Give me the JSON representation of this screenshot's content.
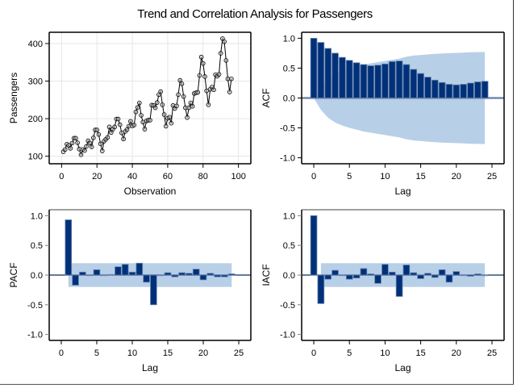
{
  "page": {
    "title": "Trend and Correlation Analysis for Passengers"
  },
  "colors": {
    "bar": "#003178",
    "bar_edge": "#6c86b3",
    "band": "#b8cfe8",
    "grid": "#e6e6e6",
    "zero_line_acf": "#7289ad",
    "zero_line": "#0c2a5e",
    "axis": "#000000",
    "axis_gray": "#808080"
  },
  "chart_data": [
    {
      "id": "trend",
      "type": "line",
      "title": "",
      "xlabel": "Observation",
      "ylabel": "Passengers",
      "xlim": [
        -7,
        107
      ],
      "ylim": [
        80,
        430
      ],
      "xticks": [
        0,
        20,
        40,
        60,
        80,
        100
      ],
      "yticks": [
        100,
        200,
        300,
        400
      ],
      "grid": true,
      "markers": "open-circle",
      "x": [
        1,
        2,
        3,
        4,
        5,
        6,
        7,
        8,
        9,
        10,
        11,
        12,
        13,
        14,
        15,
        16,
        17,
        18,
        19,
        20,
        21,
        22,
        23,
        24,
        25,
        26,
        27,
        28,
        29,
        30,
        31,
        32,
        33,
        34,
        35,
        36,
        37,
        38,
        39,
        40,
        41,
        42,
        43,
        44,
        45,
        46,
        47,
        48,
        49,
        50,
        51,
        52,
        53,
        54,
        55,
        56,
        57,
        58,
        59,
        60,
        61,
        62,
        63,
        64,
        65,
        66,
        67,
        68,
        69,
        70,
        71,
        72,
        73,
        74,
        75,
        76,
        77,
        78,
        79,
        80,
        81,
        82,
        83,
        84,
        85,
        86,
        87,
        88,
        89,
        90,
        91,
        92,
        93,
        94,
        95,
        96
      ],
      "y": [
        112,
        118,
        132,
        129,
        121,
        135,
        148,
        148,
        136,
        119,
        104,
        118,
        115,
        126,
        141,
        135,
        125,
        149,
        170,
        170,
        158,
        133,
        114,
        140,
        145,
        150,
        178,
        163,
        172,
        178,
        199,
        199,
        184,
        162,
        146,
        166,
        171,
        180,
        193,
        181,
        183,
        218,
        230,
        242,
        209,
        191,
        172,
        194,
        196,
        196,
        236,
        235,
        229,
        243,
        264,
        272,
        237,
        211,
        180,
        201,
        204,
        188,
        235,
        227,
        234,
        264,
        302,
        293,
        259,
        229,
        203,
        229,
        242,
        233,
        267,
        269,
        270,
        315,
        364,
        347,
        312,
        274,
        237,
        278,
        284,
        277,
        317,
        313,
        318,
        374,
        413,
        405,
        355,
        306,
        271,
        306
      ]
    },
    {
      "id": "acf",
      "type": "bar",
      "title": "",
      "xlabel": "Lag",
      "ylabel": "ACF",
      "xlim": [
        -1.7,
        26.7
      ],
      "ylim": [
        -1.1,
        1.1
      ],
      "xticks": [
        0,
        5,
        10,
        15,
        20,
        25
      ],
      "yticks": [
        -1.0,
        -0.5,
        0.0,
        0.5,
        1.0
      ],
      "ytick_labels": [
        "-1.0",
        "-0.5",
        "0.0",
        "0.5",
        "1.0"
      ],
      "lags": [
        0,
        1,
        2,
        3,
        4,
        5,
        6,
        7,
        8,
        9,
        10,
        11,
        12,
        13,
        14,
        15,
        16,
        17,
        18,
        19,
        20,
        21,
        22,
        23,
        24
      ],
      "values": [
        1.0,
        0.93,
        0.83,
        0.75,
        0.68,
        0.63,
        0.59,
        0.56,
        0.54,
        0.55,
        0.57,
        0.61,
        0.62,
        0.56,
        0.48,
        0.41,
        0.35,
        0.3,
        0.26,
        0.23,
        0.22,
        0.23,
        0.25,
        0.27,
        0.28
      ],
      "confidence_band": {
        "lags": [
          0,
          1,
          2,
          3,
          4,
          5,
          6,
          7,
          8,
          9,
          10,
          11,
          12,
          13,
          14,
          15,
          16,
          17,
          18,
          19,
          20,
          21,
          22,
          23,
          24
        ],
        "upper": [
          0.0,
          0.2,
          0.33,
          0.41,
          0.46,
          0.5,
          0.53,
          0.56,
          0.58,
          0.6,
          0.62,
          0.64,
          0.66,
          0.69,
          0.71,
          0.72,
          0.73,
          0.74,
          0.745,
          0.75,
          0.755,
          0.76,
          0.765,
          0.768,
          0.77
        ]
      }
    },
    {
      "id": "pacf",
      "type": "bar",
      "title": "",
      "xlabel": "Lag",
      "ylabel": "PACF",
      "xlim": [
        -1.7,
        26.7
      ],
      "ylim": [
        -1.1,
        1.1
      ],
      "xticks": [
        0,
        5,
        10,
        15,
        20,
        25
      ],
      "yticks": [
        -1.0,
        -0.5,
        0.0,
        0.5,
        1.0
      ],
      "ytick_labels": [
        "-1.0",
        "-0.5",
        "0.0",
        "0.5",
        "1.0"
      ],
      "lags": [
        1,
        2,
        3,
        4,
        5,
        6,
        7,
        8,
        9,
        10,
        11,
        12,
        13,
        14,
        15,
        16,
        17,
        18,
        19,
        20,
        21,
        22,
        23,
        24
      ],
      "values": [
        0.93,
        -0.17,
        0.05,
        0.0,
        0.09,
        0.0,
        0.01,
        0.14,
        0.18,
        0.05,
        0.2,
        -0.12,
        -0.5,
        0.0,
        0.04,
        -0.03,
        0.04,
        0.03,
        0.1,
        -0.08,
        0.03,
        -0.03,
        -0.03,
        0.02
      ],
      "confidence_band": {
        "from_lag": 1,
        "to_lag": 24,
        "limit": 0.2
      }
    },
    {
      "id": "iacf",
      "type": "bar",
      "title": "",
      "xlabel": "Lag",
      "ylabel": "IACF",
      "xlim": [
        -1.7,
        26.7
      ],
      "ylim": [
        -1.1,
        1.1
      ],
      "xticks": [
        0,
        5,
        10,
        15,
        20,
        25
      ],
      "yticks": [
        -1.0,
        -0.5,
        0.0,
        0.5,
        1.0
      ],
      "ytick_labels": [
        "-1.0",
        "-0.5",
        "0.0",
        "0.5",
        "1.0"
      ],
      "lags": [
        0,
        1,
        2,
        3,
        4,
        5,
        6,
        7,
        8,
        9,
        10,
        11,
        12,
        13,
        14,
        15,
        16,
        17,
        18,
        19,
        20,
        21,
        22,
        23,
        24
      ],
      "values": [
        1.0,
        -0.48,
        -0.07,
        0.08,
        -0.01,
        -0.07,
        -0.05,
        0.11,
        0.02,
        -0.14,
        0.18,
        0.05,
        -0.36,
        0.17,
        0.04,
        -0.06,
        0.03,
        -0.04,
        0.09,
        -0.12,
        0.06,
        -0.01,
        -0.02,
        0.02,
        -0.01
      ],
      "confidence_band": {
        "from_lag": 1,
        "to_lag": 24,
        "limit": 0.2
      }
    }
  ]
}
